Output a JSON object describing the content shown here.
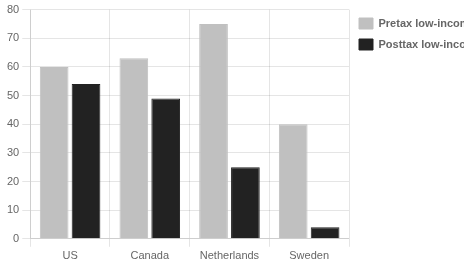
{
  "chart_data": {
    "type": "bar",
    "categories": [
      "US",
      "Canada",
      "Netherlands",
      "Sweden"
    ],
    "series": [
      {
        "name": "Pretax low-income rate",
        "color": "#c0c0c0",
        "values": [
          60,
          63,
          75,
          40
        ]
      },
      {
        "name": "Posttax low-income\nrate",
        "color": "#222222",
        "values": [
          54,
          49,
          25,
          4
        ]
      }
    ],
    "ylim": [
      0,
      80
    ],
    "yticks": [
      0,
      10,
      20,
      30,
      40,
      50,
      60,
      70,
      80
    ],
    "grid": true,
    "legend": "right"
  }
}
